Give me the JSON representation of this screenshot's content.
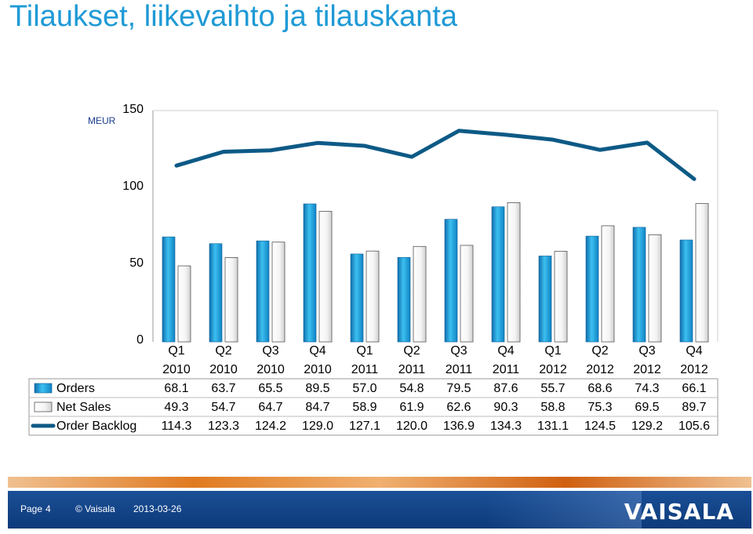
{
  "header": {
    "title": "Tilaukset, liikevaihto ja tilauskanta"
  },
  "axis": {
    "unit": "MEUR",
    "y_ticks": [
      "0",
      "50",
      "100",
      "150"
    ]
  },
  "chart_data": {
    "type": "bar",
    "categories": [
      [
        "Q1",
        "2010"
      ],
      [
        "Q2",
        "2010"
      ],
      [
        "Q3",
        "2010"
      ],
      [
        "Q4",
        "2010"
      ],
      [
        "Q1",
        "2011"
      ],
      [
        "Q2",
        "2011"
      ],
      [
        "Q3",
        "2011"
      ],
      [
        "Q4",
        "2011"
      ],
      [
        "Q1",
        "2012"
      ],
      [
        "Q2",
        "2012"
      ],
      [
        "Q3",
        "2012"
      ],
      [
        "Q4",
        "2012"
      ]
    ],
    "ylim": [
      0,
      150
    ],
    "yticks": [
      0,
      50,
      100,
      150
    ],
    "ylabel": "MEUR",
    "grid": false,
    "series": [
      {
        "name": "Orders",
        "type": "bar",
        "color": "#2aa8e6",
        "labels": [
          "68.1",
          "63.7",
          "65.5",
          "89.5",
          "57.0",
          "54.8",
          "79.5",
          "87.6",
          "55.7",
          "68.6",
          "74.3",
          "66.1"
        ],
        "values": [
          68.1,
          63.7,
          65.5,
          89.5,
          57.0,
          54.8,
          79.5,
          87.6,
          55.7,
          68.6,
          74.3,
          66.1
        ]
      },
      {
        "name": "Net Sales",
        "type": "bar",
        "color": "#ffffff",
        "labels": [
          "49.3",
          "54.7",
          "64.7",
          "84.7",
          "58.9",
          "61.9",
          "62.6",
          "90.3",
          "58.8",
          "75.3",
          "69.5",
          "89.7"
        ],
        "values": [
          49.3,
          54.7,
          64.7,
          84.7,
          58.9,
          61.9,
          62.6,
          90.3,
          58.8,
          75.3,
          69.5,
          89.7
        ]
      },
      {
        "name": "Order Backlog",
        "type": "line",
        "color": "#0d5a86",
        "labels": [
          "114.3",
          "123.3",
          "124.2",
          "129.0",
          "127.1",
          "120.0",
          "136.9",
          "134.3",
          "131.1",
          "124.5",
          "129.2",
          "105.6"
        ],
        "values": [
          114.3,
          123.3,
          124.2,
          129.0,
          127.1,
          120.0,
          136.9,
          134.3,
          131.1,
          124.5,
          129.2,
          105.6
        ]
      }
    ]
  },
  "footer": {
    "page_label": "Page",
    "page_number": "4",
    "company": "© Vaisala",
    "date": "2013-03-26",
    "logo": "VAISALA"
  },
  "colors": {
    "title": "#1f9ad6",
    "footer": "#1a4f96",
    "accent_orange": "#e07a20"
  }
}
